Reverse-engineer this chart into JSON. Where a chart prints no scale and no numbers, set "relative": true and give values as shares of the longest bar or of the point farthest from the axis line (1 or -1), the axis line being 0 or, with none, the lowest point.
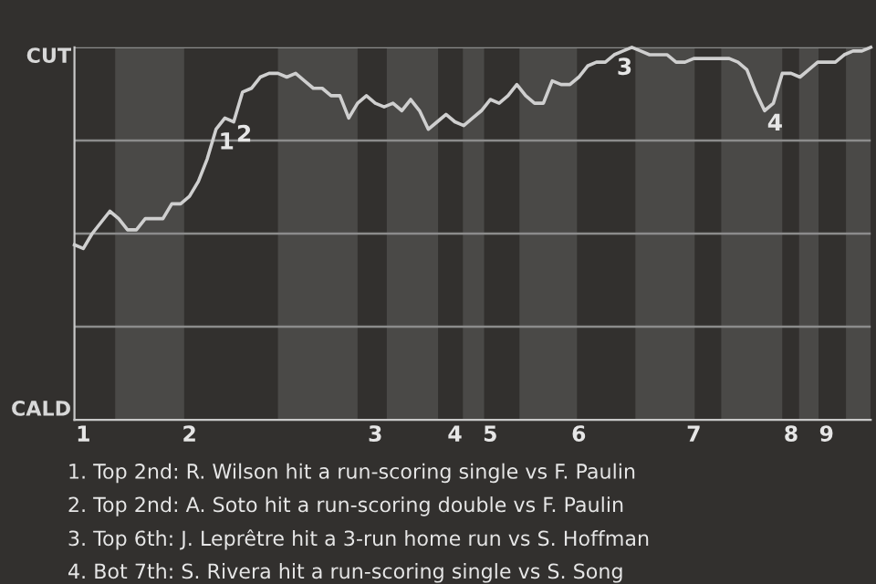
{
  "chart_data": {
    "type": "line",
    "relative": true,
    "categories": [
      null,
      "1",
      null,
      null,
      null,
      null,
      null,
      null,
      null,
      null,
      null,
      null,
      null,
      "2",
      null,
      null,
      null,
      null,
      null,
      null,
      null,
      null,
      null,
      null,
      null,
      null,
      null,
      null,
      null,
      null,
      null,
      null,
      null,
      null,
      "3",
      null,
      null,
      null,
      null,
      null,
      null,
      null,
      null,
      "4",
      null,
      null,
      null,
      "5",
      null,
      null,
      null,
      null,
      null,
      null,
      null,
      null,
      null,
      "6",
      null,
      null,
      null,
      null,
      null,
      null,
      null,
      null,
      null,
      null,
      null,
      null,
      "7",
      null,
      null,
      null,
      null,
      null,
      null,
      null,
      null,
      null,
      null,
      "8",
      null,
      null,
      null,
      "9",
      null,
      null,
      null,
      null,
      null
    ],
    "series": [
      {
        "color": "#cfcfcf",
        "values": [
          0.47,
          0.46,
          0.5,
          0.53,
          0.56,
          0.54,
          0.51,
          0.51,
          0.54,
          0.54,
          0.54,
          0.58,
          0.58,
          0.6,
          0.64,
          0.7,
          0.78,
          0.81,
          0.8,
          0.88,
          0.89,
          0.92,
          0.93,
          0.93,
          0.92,
          0.93,
          0.91,
          0.89,
          0.89,
          0.87,
          0.87,
          0.81,
          0.85,
          0.87,
          0.85,
          0.84,
          0.85,
          0.83,
          0.86,
          0.83,
          0.78,
          0.8,
          0.82,
          0.8,
          0.79,
          0.81,
          0.83,
          0.86,
          0.85,
          0.87,
          0.9,
          0.87,
          0.85,
          0.85,
          0.91,
          0.9,
          0.9,
          0.92,
          0.95,
          0.96,
          0.96,
          0.98,
          0.99,
          1.0,
          0.99,
          0.98,
          0.98,
          0.98,
          0.96,
          0.96,
          0.97,
          0.97,
          0.97,
          0.97,
          0.97,
          0.96,
          0.94,
          0.88,
          0.83,
          0.85,
          0.93,
          0.93,
          0.92,
          0.94,
          0.96,
          0.96,
          0.96,
          0.98,
          0.99,
          0.99,
          1.0
        ]
      }
    ],
    "marker": "none",
    "line_style": "solid",
    "ref_lines": [
      {
        "axis": "y",
        "value": 0.25,
        "color": "#8c8c8c"
      },
      {
        "axis": "y",
        "value": 0.5,
        "color": "#8c8c8c"
      },
      {
        "axis": "y",
        "value": 0.75,
        "color": "#8c8c8c"
      },
      {
        "axis": "y",
        "value": 1,
        "color": "#8c8c8c"
      }
    ],
    "annotations": [
      {
        "text": "1",
        "y": 0.78
      },
      {
        "text": "2",
        "y": 0.8
      },
      {
        "text": "3",
        "y": 0.98
      },
      {
        "text": "4",
        "y": 0.83
      },
      "CUT",
      "CALD",
      "1. Top 2nd: R. Wilson hit a run-scoring single vs F. Paulin",
      "2. Top 2nd: A. Soto hit a run-scoring double vs F. Paulin",
      "3. Top 6th: J. Leprêtre hit a 3-run home run vs S. Hoffman",
      "4. Bot 7th: S. Rivera hit a run-scoring single vs S. Song"
    ]
  }
}
